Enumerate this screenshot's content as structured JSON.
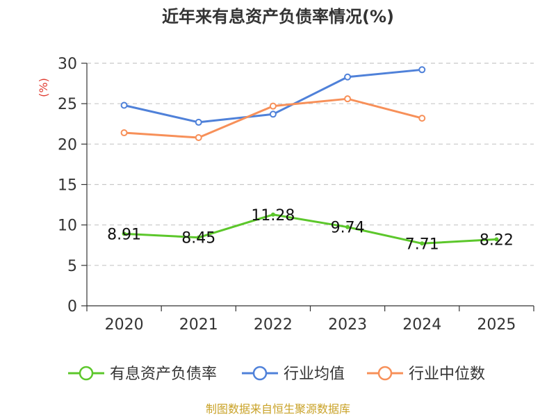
{
  "chart_data": {
    "type": "line",
    "title": "近年来有息资产负债率情况(%)",
    "ylabel": "(%)",
    "xlabel": "",
    "categories": [
      "2020",
      "2021",
      "2022",
      "2023",
      "2024",
      "2025"
    ],
    "ylim": [
      0,
      30
    ],
    "yticks": [
      "0",
      "5",
      "10",
      "15",
      "20",
      "25",
      "30"
    ],
    "grid": true,
    "legend_position": "bottom",
    "series": [
      {
        "name": "有息资产负债率",
        "color": "#5cc72b",
        "values": [
          8.91,
          8.45,
          11.28,
          9.74,
          7.71,
          8.22
        ],
        "labels": [
          "8.91",
          "8.45",
          "11.28",
          "9.74",
          "7.71",
          "8.22"
        ]
      },
      {
        "name": "行业均值",
        "color": "#4f81d9",
        "values": [
          24.8,
          22.7,
          23.7,
          28.3,
          29.2,
          null
        ]
      },
      {
        "name": "行业中位数",
        "color": "#f79059",
        "values": [
          21.4,
          20.8,
          24.7,
          25.6,
          23.2,
          null
        ]
      }
    ],
    "source": "制图数据来自恒生聚源数据库"
  }
}
